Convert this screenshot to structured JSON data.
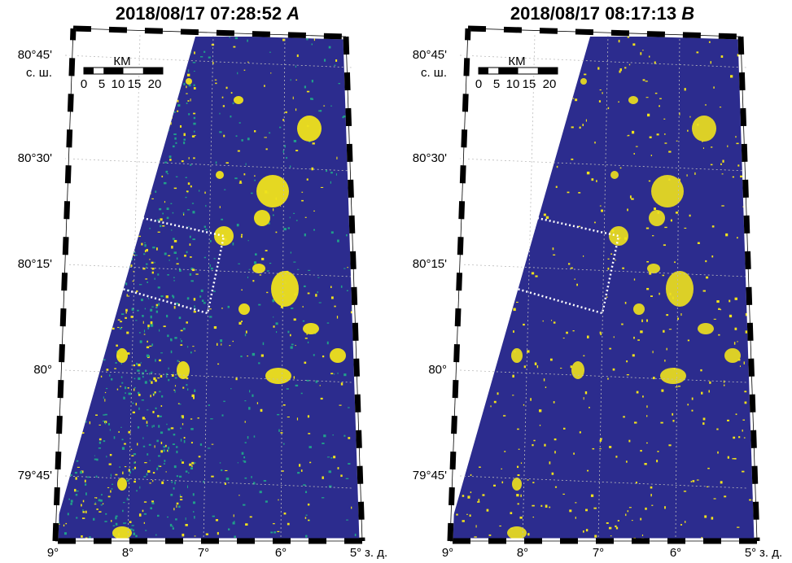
{
  "panels": [
    {
      "title": "2018/08/17 07:28:52",
      "letter": "A",
      "lat_labels": [
        "80°45'",
        "80°30'",
        "80°15'",
        "80°",
        "79°45'"
      ],
      "lat_suffix": "с. ш.",
      "lon_labels": [
        "9°",
        "8°",
        "7°",
        "6°",
        "5°"
      ],
      "lon_suffix": "з. д.",
      "scale": {
        "unit": "КМ",
        "labels": [
          "0",
          "5",
          "10",
          "15",
          "20"
        ]
      }
    },
    {
      "title": "2018/08/17 08:17:13",
      "letter": "B",
      "lat_labels": [
        "80°45'",
        "80°30'",
        "80°15'",
        "80°",
        "79°45'"
      ],
      "lat_suffix": "с. ш.",
      "lon_labels": [
        "9°",
        "8°",
        "7°",
        "6°",
        "5°"
      ],
      "lon_suffix": "з. д.",
      "scale": {
        "unit": "КМ",
        "labels": [
          "0",
          "5",
          "10",
          "15",
          "20"
        ]
      }
    }
  ]
}
